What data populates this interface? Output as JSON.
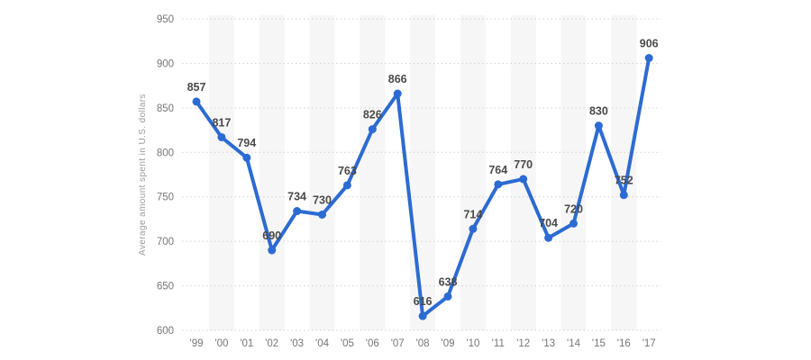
{
  "chart_data": {
    "type": "line",
    "ylabel": "Average amount spent in U.S. dollars",
    "categories": [
      "'99",
      "'00",
      "'01",
      "'02",
      "'03",
      "'04",
      "'05",
      "'06",
      "'07",
      "'08",
      "'09",
      "'10",
      "'11",
      "'12",
      "'13",
      "'14",
      "'15",
      "'16",
      "'17"
    ],
    "values": [
      857,
      817,
      794,
      690,
      734,
      730,
      763,
      826,
      866,
      616,
      638,
      714,
      764,
      770,
      704,
      720,
      830,
      752,
      906
    ],
    "ylim": [
      600,
      950
    ],
    "ytick_step": 50,
    "yticks": [
      600,
      650,
      700,
      750,
      800,
      850,
      900,
      950
    ],
    "grid": "horizontal-dotted",
    "legend": "none",
    "data_labels": "above-points",
    "colors": {
      "line": "#2c6bd2",
      "marker": "#2c6bd2",
      "data_label": "#4a4a4a",
      "tick_label": "#767676",
      "axis_title": "#9b9b9b",
      "band": "#f6f6f6",
      "gridline": "#cfcfcf",
      "background": "#ffffff"
    }
  }
}
